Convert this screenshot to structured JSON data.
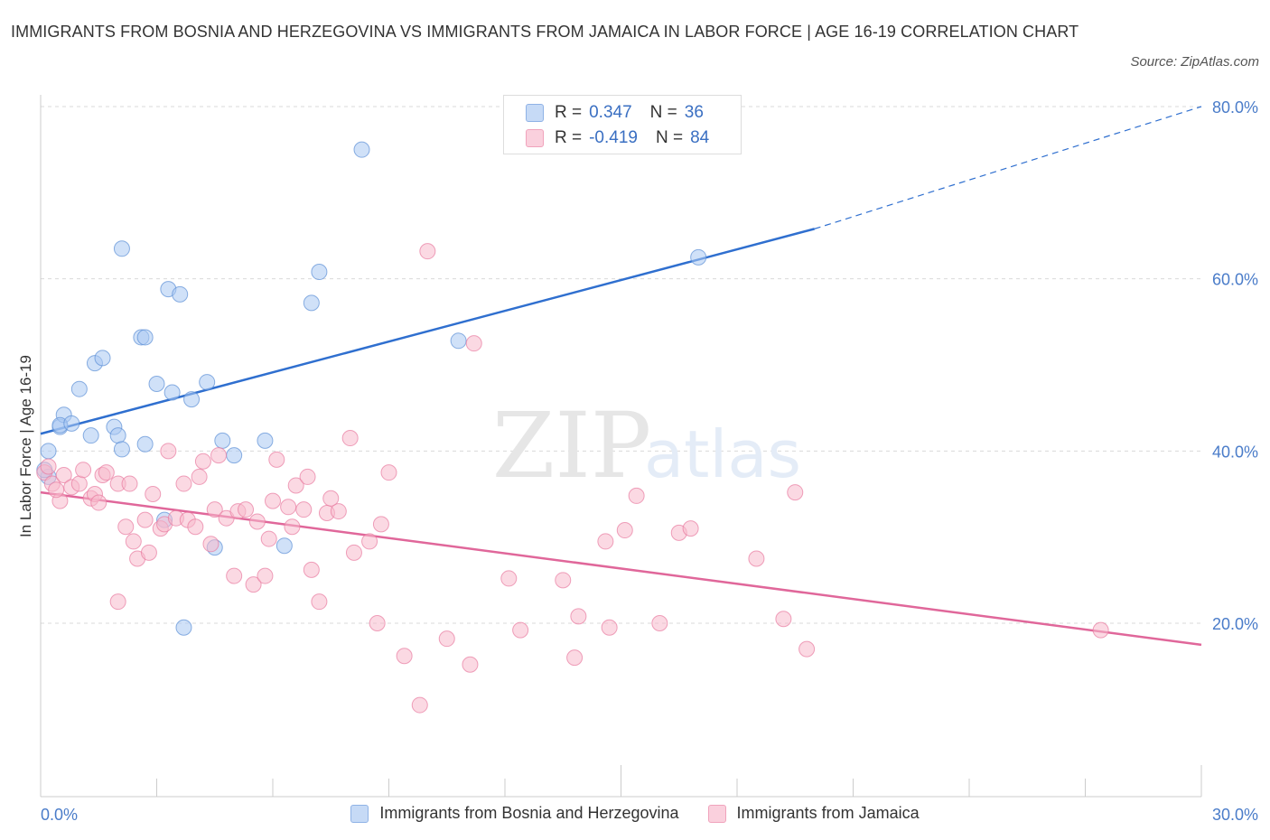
{
  "header": {
    "title": "IMMIGRANTS FROM BOSNIA AND HERZEGOVINA VS IMMIGRANTS FROM JAMAICA IN LABOR FORCE | AGE 16-19 CORRELATION CHART",
    "source": "Source: ZipAtlas.com"
  },
  "watermark": {
    "zip": "ZIP",
    "atlas": "atlas"
  },
  "legend": {
    "rows": [
      {
        "r_label": "R =",
        "r_value": "0.347",
        "n_label": "N =",
        "n_value": "36",
        "color": "#a9c8f2"
      },
      {
        "r_label": "R =",
        "r_value": "-0.419",
        "n_label": "N =",
        "n_value": "84",
        "color": "#f7b9cc"
      }
    ]
  },
  "bottom_legend": [
    {
      "label": "Immigrants from Bosnia and Herzegovina",
      "color": "#a9c8f2"
    },
    {
      "label": "Immigrants from Jamaica",
      "color": "#f7b9cc"
    }
  ],
  "chart_data": {
    "type": "scatter",
    "title": "IMMIGRANTS FROM BOSNIA AND HERZEGOVINA VS IMMIGRANTS FROM JAMAICA IN LABOR FORCE | AGE 16-19 CORRELATION CHART",
    "xlabel": "",
    "ylabel": "In Labor Force | Age 16-19",
    "xlim": [
      0,
      30
    ],
    "ylim": [
      0,
      80
    ],
    "x_ticks": [
      "0.0%",
      "30.0%"
    ],
    "y_ticks": [
      {
        "value": 20,
        "label": "20.0%"
      },
      {
        "value": 40,
        "label": "40.0%"
      },
      {
        "value": 60,
        "label": "60.0%"
      },
      {
        "value": 80,
        "label": "80.0%"
      }
    ],
    "grid": true,
    "legend_position": "top-center",
    "series": [
      {
        "name": "Immigrants from Bosnia and Herzegovina",
        "color": "#5b8fd6",
        "fill": "#a9c8f2",
        "trend": {
          "x": [
            0,
            20.0
          ],
          "y": [
            42.0,
            65.8
          ],
          "dashed_to": [
            30,
            80.0
          ]
        },
        "points": [
          [
            0.2,
            37.0
          ],
          [
            0.2,
            40.0
          ],
          [
            0.5,
            42.8
          ],
          [
            0.6,
            44.2
          ],
          [
            0.5,
            43.0
          ],
          [
            0.8,
            43.2
          ],
          [
            1.0,
            47.2
          ],
          [
            1.3,
            41.8
          ],
          [
            1.4,
            50.2
          ],
          [
            1.6,
            50.8
          ],
          [
            1.9,
            42.8
          ],
          [
            2.0,
            41.8
          ],
          [
            2.1,
            63.5
          ],
          [
            2.1,
            40.2
          ],
          [
            2.6,
            53.2
          ],
          [
            2.7,
            53.2
          ],
          [
            2.7,
            40.8
          ],
          [
            3.0,
            47.8
          ],
          [
            3.2,
            32.0
          ],
          [
            3.3,
            58.8
          ],
          [
            3.4,
            46.8
          ],
          [
            3.6,
            58.2
          ],
          [
            3.7,
            19.5
          ],
          [
            3.9,
            46.0
          ],
          [
            4.3,
            48.0
          ],
          [
            4.5,
            28.8
          ],
          [
            4.7,
            41.2
          ],
          [
            5.0,
            39.5
          ],
          [
            5.8,
            41.2
          ],
          [
            6.3,
            29.0
          ],
          [
            7.0,
            57.2
          ],
          [
            7.2,
            60.8
          ],
          [
            8.3,
            75.0
          ],
          [
            10.8,
            52.8
          ],
          [
            17.0,
            62.5
          ],
          [
            0.1,
            37.8
          ]
        ]
      },
      {
        "name": "Immigrants from Jamaica",
        "color": "#e87aa0",
        "fill": "#f7b9cc",
        "trend": {
          "x": [
            0,
            30
          ],
          "y": [
            35.2,
            17.5
          ]
        },
        "points": [
          [
            0.1,
            37.5
          ],
          [
            0.2,
            38.2
          ],
          [
            0.3,
            36.2
          ],
          [
            0.5,
            34.2
          ],
          [
            0.6,
            37.2
          ],
          [
            0.8,
            35.8
          ],
          [
            1.0,
            36.2
          ],
          [
            1.1,
            37.8
          ],
          [
            1.3,
            34.5
          ],
          [
            1.4,
            35.0
          ],
          [
            1.6,
            37.2
          ],
          [
            1.7,
            37.5
          ],
          [
            2.0,
            22.5
          ],
          [
            2.0,
            36.2
          ],
          [
            2.2,
            31.2
          ],
          [
            2.3,
            36.2
          ],
          [
            2.4,
            29.5
          ],
          [
            2.5,
            27.5
          ],
          [
            2.7,
            32.0
          ],
          [
            2.8,
            28.2
          ],
          [
            2.9,
            35.0
          ],
          [
            3.1,
            31.0
          ],
          [
            3.2,
            31.5
          ],
          [
            3.3,
            40.0
          ],
          [
            3.5,
            32.2
          ],
          [
            3.7,
            36.2
          ],
          [
            3.8,
            32.0
          ],
          [
            4.0,
            31.2
          ],
          [
            4.1,
            37.0
          ],
          [
            4.2,
            38.8
          ],
          [
            4.4,
            29.2
          ],
          [
            4.5,
            33.2
          ],
          [
            4.6,
            39.5
          ],
          [
            4.8,
            32.2
          ],
          [
            5.0,
            25.5
          ],
          [
            5.1,
            33.0
          ],
          [
            5.3,
            33.2
          ],
          [
            5.5,
            24.5
          ],
          [
            5.6,
            31.8
          ],
          [
            5.8,
            25.5
          ],
          [
            5.9,
            29.8
          ],
          [
            6.0,
            34.2
          ],
          [
            6.1,
            39.0
          ],
          [
            6.4,
            33.5
          ],
          [
            6.5,
            31.2
          ],
          [
            6.6,
            36.0
          ],
          [
            6.8,
            33.2
          ],
          [
            6.9,
            37.0
          ],
          [
            7.0,
            26.2
          ],
          [
            7.2,
            22.5
          ],
          [
            7.4,
            32.8
          ],
          [
            7.5,
            34.5
          ],
          [
            7.7,
            33.0
          ],
          [
            8.0,
            41.5
          ],
          [
            8.1,
            28.2
          ],
          [
            8.5,
            29.5
          ],
          [
            8.7,
            20.0
          ],
          [
            8.8,
            31.5
          ],
          [
            9.0,
            37.5
          ],
          [
            9.4,
            16.2
          ],
          [
            9.8,
            10.5
          ],
          [
            10.0,
            63.2
          ],
          [
            10.5,
            18.2
          ],
          [
            11.1,
            15.2
          ],
          [
            11.2,
            52.5
          ],
          [
            12.1,
            25.2
          ],
          [
            12.4,
            19.2
          ],
          [
            13.5,
            25.0
          ],
          [
            13.8,
            16.0
          ],
          [
            13.9,
            20.8
          ],
          [
            14.6,
            29.5
          ],
          [
            14.7,
            19.5
          ],
          [
            15.1,
            30.8
          ],
          [
            15.4,
            34.8
          ],
          [
            16.0,
            20.0
          ],
          [
            16.5,
            30.5
          ],
          [
            16.8,
            31.0
          ],
          [
            18.5,
            27.5
          ],
          [
            19.2,
            20.5
          ],
          [
            19.5,
            35.2
          ],
          [
            19.8,
            17.0
          ],
          [
            27.4,
            19.2
          ],
          [
            0.4,
            35.5
          ],
          [
            1.5,
            34.0
          ]
        ]
      }
    ]
  }
}
